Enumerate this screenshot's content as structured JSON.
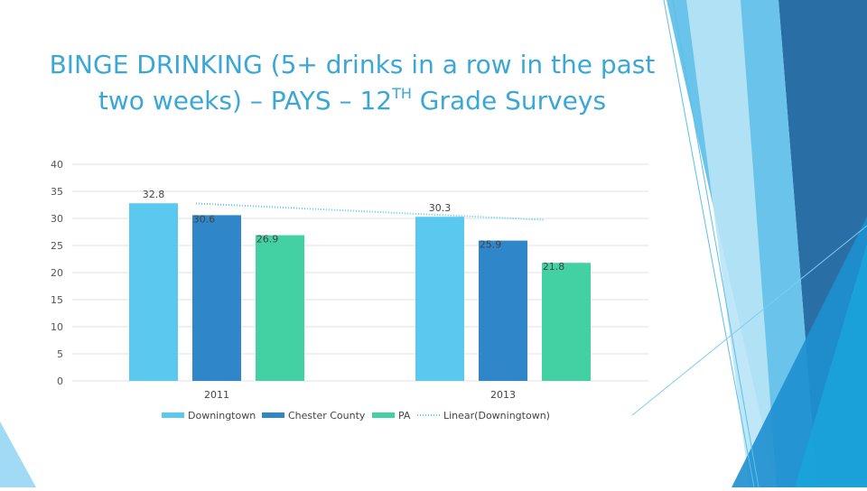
{
  "slide": {
    "title_main": "BINGE DRINKING (5+ drinks in a row in the past two weeks) – PAYS – 12",
    "title_superscript": "TH",
    "title_end": " Grade Surveys"
  },
  "chart_data": {
    "type": "bar",
    "title": "BINGE DRINKING (5+ drinks in a row in the past two weeks) – PAYS – 12TH Grade Surveys",
    "categories": [
      "2011",
      "2013"
    ],
    "series": [
      {
        "name": "Downingtown",
        "values": [
          32.8,
          30.3
        ],
        "color": "#5bc8ef"
      },
      {
        "name": "Chester County",
        "values": [
          30.6,
          25.9
        ],
        "color": "#2f86c8"
      },
      {
        "name": "PA",
        "values": [
          26.9,
          21.8
        ],
        "color": "#43d1a4"
      }
    ],
    "trendline": {
      "name": "Linear(Downingtown)",
      "series": "Downingtown",
      "color": "#5bc8ef"
    },
    "yticks": [
      "0",
      "5",
      "10",
      "15",
      "20",
      "25",
      "30",
      "35",
      "40"
    ],
    "ylim": [
      0,
      40
    ],
    "xlabel": "",
    "ylabel": "",
    "grid": true,
    "legend_position": "bottom"
  }
}
